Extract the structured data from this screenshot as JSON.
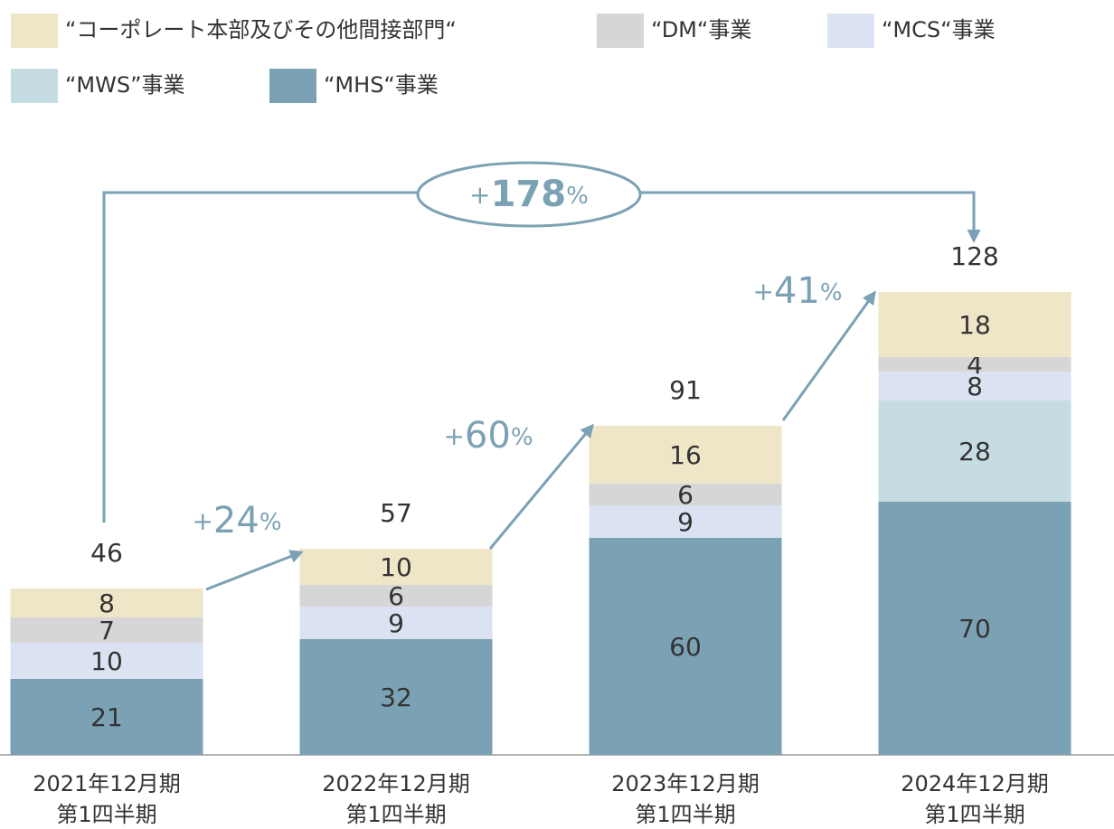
{
  "chart_data": {
    "type": "stacked_bar",
    "categories": [
      [
        "2021年12月期",
        "第1四半期"
      ],
      [
        "2022年12月期",
        "第1四半期"
      ],
      [
        "2023年12月期",
        "第1四半期"
      ],
      [
        "2024年12月期",
        "第1四半期"
      ]
    ],
    "series": [
      {
        "name": "“コーポレート本部及びその他間接部門“",
        "color": "#efe6c8",
        "values": [
          8,
          10,
          16,
          18
        ]
      },
      {
        "name": "“DM“事業",
        "color": "#d6d6d6",
        "values": [
          7,
          6,
          6,
          4
        ]
      },
      {
        "name": "“MCS“事業",
        "color": "#dbe3f3",
        "values": [
          10,
          9,
          9,
          8
        ]
      },
      {
        "name": "“MWS”事業",
        "color": "#c5dde2",
        "values": [
          null,
          null,
          null,
          28
        ]
      },
      {
        "name": "“MHS“事業",
        "color": "#7ba2b4",
        "values": [
          21,
          32,
          60,
          70
        ]
      }
    ],
    "totals": [
      46,
      57,
      91,
      128
    ],
    "annotations": [
      {
        "sign": "+",
        "value": 24,
        "unit": "%"
      },
      {
        "sign": "+",
        "value": 60,
        "unit": "%"
      },
      {
        "sign": "+",
        "value": 41,
        "unit": "%"
      },
      {
        "sign": "+",
        "value": 178,
        "unit": "%"
      }
    ],
    "ylim": [
      0,
      130
    ]
  }
}
